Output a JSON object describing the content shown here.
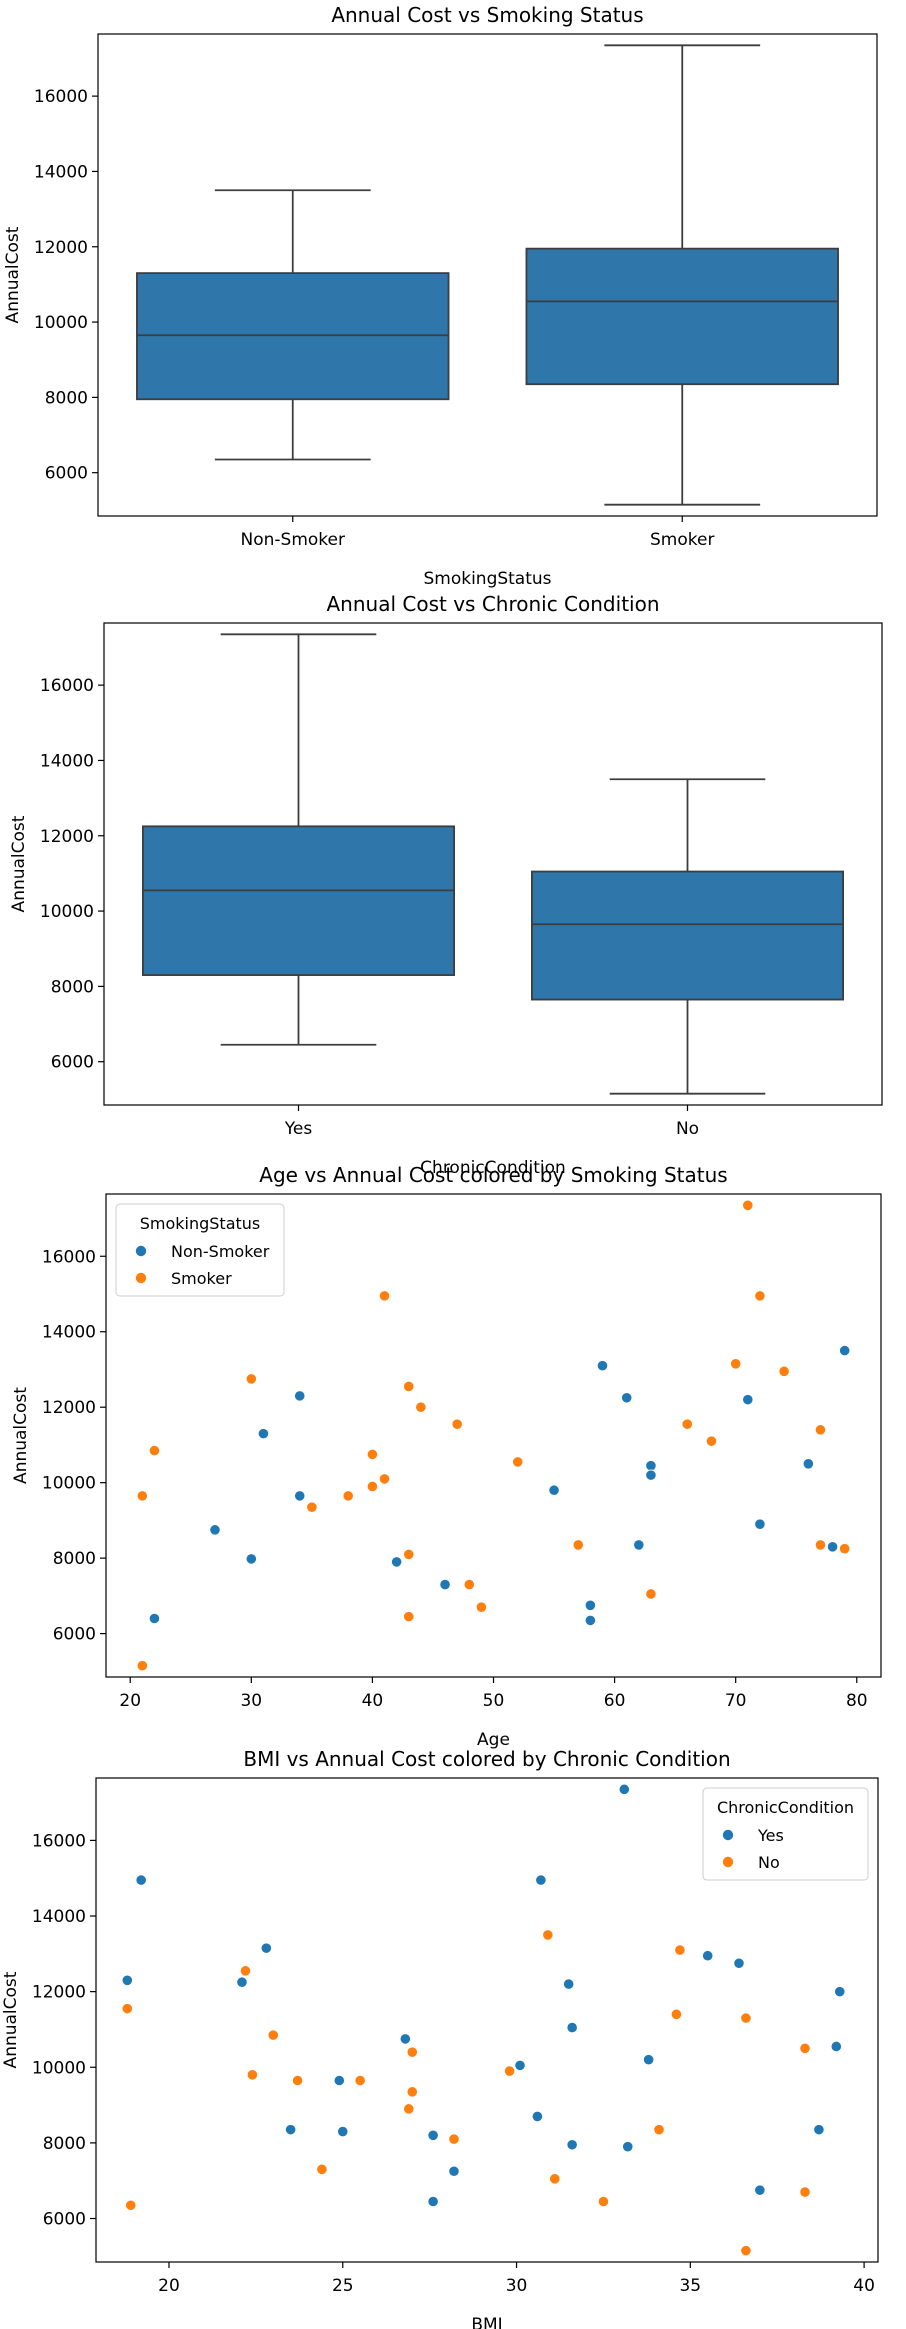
{
  "colors": {
    "blue": "#1f77b4",
    "orange": "#ff7f0e",
    "box": "#2f76ab",
    "line": "#3d3d3d"
  },
  "chart_data": [
    {
      "type": "box",
      "title": "Annual Cost vs Smoking Status",
      "xlabel": "SmokingStatus",
      "ylabel": "AnnualCost",
      "ylim": [
        4850,
        17650
      ],
      "yticks": [
        6000,
        8000,
        10000,
        12000,
        14000,
        16000
      ],
      "categories": [
        "Non-Smoker",
        "Smoker"
      ],
      "boxes": [
        {
          "category": "Non-Smoker",
          "whisker_low": 6350,
          "q1": 7950,
          "median": 9650,
          "q3": 11300,
          "whisker_high": 13500
        },
        {
          "category": "Smoker",
          "whisker_low": 5150,
          "q1": 8350,
          "median": 10550,
          "q3": 11950,
          "whisker_high": 17350
        }
      ]
    },
    {
      "type": "box",
      "title": "Annual Cost vs Chronic Condition",
      "xlabel": "ChronicCondition",
      "ylabel": "AnnualCost",
      "ylim": [
        4850,
        17650
      ],
      "yticks": [
        6000,
        8000,
        10000,
        12000,
        14000,
        16000
      ],
      "categories": [
        "Yes",
        "No"
      ],
      "boxes": [
        {
          "category": "Yes",
          "whisker_low": 6450,
          "q1": 8300,
          "median": 10550,
          "q3": 12250,
          "whisker_high": 17350
        },
        {
          "category": "No",
          "whisker_low": 5150,
          "q1": 7650,
          "median": 9650,
          "q3": 11050,
          "whisker_high": 13500
        }
      ]
    },
    {
      "type": "scatter",
      "title": "Age vs Annual Cost colored by Smoking Status",
      "xlabel": "Age",
      "ylabel": "AnnualCost",
      "xlim": [
        18,
        82
      ],
      "ylim": [
        4850,
        17650
      ],
      "xticks": [
        20,
        30,
        40,
        50,
        60,
        70,
        80
      ],
      "yticks": [
        6000,
        8000,
        10000,
        12000,
        14000,
        16000
      ],
      "legend": {
        "title": "SmokingStatus",
        "placement": "top-left"
      },
      "series": [
        {
          "name": "Non-Smoker",
          "color": "#1f77b4",
          "points": [
            [
              22,
              6400
            ],
            [
              27,
              8750
            ],
            [
              30,
              7980
            ],
            [
              31,
              11300
            ],
            [
              34,
              12300
            ],
            [
              34,
              9650
            ],
            [
              42,
              7900
            ],
            [
              46,
              7300
            ],
            [
              55,
              9800
            ],
            [
              58,
              6750
            ],
            [
              58,
              6350
            ],
            [
              59,
              13100
            ],
            [
              61,
              12250
            ],
            [
              62,
              8350
            ],
            [
              63,
              10450
            ],
            [
              63,
              10200
            ],
            [
              71,
              12200
            ],
            [
              72,
              8900
            ],
            [
              76,
              10500
            ],
            [
              78,
              8300
            ],
            [
              79,
              13500
            ]
          ]
        },
        {
          "name": "Smoker",
          "color": "#ff7f0e",
          "points": [
            [
              21,
              9650
            ],
            [
              21,
              5150
            ],
            [
              22,
              10850
            ],
            [
              30,
              12750
            ],
            [
              35,
              9350
            ],
            [
              38,
              9650
            ],
            [
              40,
              10750
            ],
            [
              40,
              9900
            ],
            [
              41,
              10100
            ],
            [
              41,
              14950
            ],
            [
              43,
              12550
            ],
            [
              43,
              8100
            ],
            [
              43,
              6450
            ],
            [
              44,
              12000
            ],
            [
              47,
              11550
            ],
            [
              48,
              7300
            ],
            [
              49,
              6700
            ],
            [
              52,
              10550
            ],
            [
              57,
              8350
            ],
            [
              63,
              7050
            ],
            [
              66,
              11550
            ],
            [
              68,
              11100
            ],
            [
              70,
              13150
            ],
            [
              71,
              17350
            ],
            [
              72,
              14950
            ],
            [
              74,
              12950
            ],
            [
              77,
              11400
            ],
            [
              77,
              8350
            ],
            [
              79,
              8250
            ]
          ]
        }
      ]
    },
    {
      "type": "scatter",
      "title": "BMI vs Annual Cost colored by Chronic Condition",
      "xlabel": "BMI",
      "ylabel": "AnnualCost",
      "xlim": [
        17.9,
        40.4
      ],
      "ylim": [
        4850,
        17650
      ],
      "xticks": [
        20,
        25,
        30,
        35,
        40
      ],
      "yticks": [
        6000,
        8000,
        10000,
        12000,
        14000,
        16000
      ],
      "legend": {
        "title": "ChronicCondition",
        "placement": "top-right"
      },
      "series": [
        {
          "name": "Yes",
          "color": "#1f77b4",
          "points": [
            [
              18.8,
              12300
            ],
            [
              19.2,
              14950
            ],
            [
              22.1,
              12250
            ],
            [
              22.8,
              13150
            ],
            [
              23.5,
              8350
            ],
            [
              24.9,
              9650
            ],
            [
              25.0,
              8300
            ],
            [
              26.8,
              10750
            ],
            [
              27.6,
              8200
            ],
            [
              27.6,
              6450
            ],
            [
              28.2,
              7250
            ],
            [
              30.1,
              10050
            ],
            [
              30.6,
              8700
            ],
            [
              30.7,
              14950
            ],
            [
              31.5,
              12200
            ],
            [
              31.6,
              11050
            ],
            [
              31.6,
              7950
            ],
            [
              33.1,
              17350
            ],
            [
              33.2,
              7900
            ],
            [
              33.8,
              10200
            ],
            [
              35.5,
              12950
            ],
            [
              36.4,
              12750
            ],
            [
              37.0,
              6750
            ],
            [
              38.7,
              8350
            ],
            [
              39.2,
              10550
            ],
            [
              39.3,
              12000
            ]
          ]
        },
        {
          "name": "No",
          "color": "#ff7f0e",
          "points": [
            [
              18.8,
              11550
            ],
            [
              18.9,
              6350
            ],
            [
              22.2,
              12550
            ],
            [
              22.4,
              9800
            ],
            [
              23.0,
              10850
            ],
            [
              23.7,
              9650
            ],
            [
              24.4,
              7300
            ],
            [
              25.5,
              9650
            ],
            [
              26.9,
              8900
            ],
            [
              27.0,
              9350
            ],
            [
              27.0,
              10400
            ],
            [
              28.2,
              8100
            ],
            [
              29.8,
              9900
            ],
            [
              30.9,
              13500
            ],
            [
              31.1,
              7050
            ],
            [
              32.5,
              6450
            ],
            [
              34.1,
              8350
            ],
            [
              34.6,
              11400
            ],
            [
              34.7,
              13100
            ],
            [
              36.6,
              11300
            ],
            [
              36.6,
              5150
            ],
            [
              38.3,
              10500
            ],
            [
              38.3,
              6700
            ]
          ]
        }
      ]
    }
  ]
}
